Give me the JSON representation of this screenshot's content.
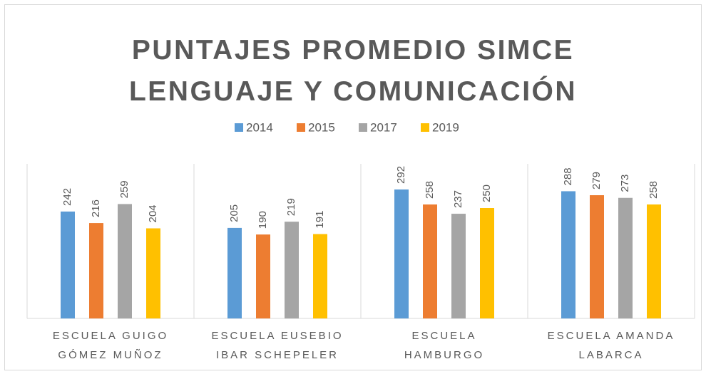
{
  "chart_data": {
    "type": "bar",
    "title": "PUNTAJES PROMEDIO SIMCE\nLENGUAJE Y COMUNICACIÓN",
    "categories": [
      "ESCUELA GUIGO\nGÓMEZ MUÑOZ",
      "ESCUELA EUSEBIO\nIBAR SCHEPELER",
      "ESCUELA\nHAMBURGO",
      "ESCUELA AMANDA\nLABARCA"
    ],
    "series": [
      {
        "name": "2014",
        "color": "#5b9bd5",
        "values": [
          242,
          205,
          292,
          288
        ]
      },
      {
        "name": "2015",
        "color": "#ed7d31",
        "values": [
          216,
          190,
          258,
          279
        ]
      },
      {
        "name": "2017",
        "color": "#a5a5a5",
        "values": [
          259,
          219,
          237,
          273
        ]
      },
      {
        "name": "2019",
        "color": "#ffc000",
        "values": [
          204,
          191,
          250,
          258
        ]
      }
    ],
    "ylim": [
      0,
      350
    ],
    "legend": "top"
  }
}
